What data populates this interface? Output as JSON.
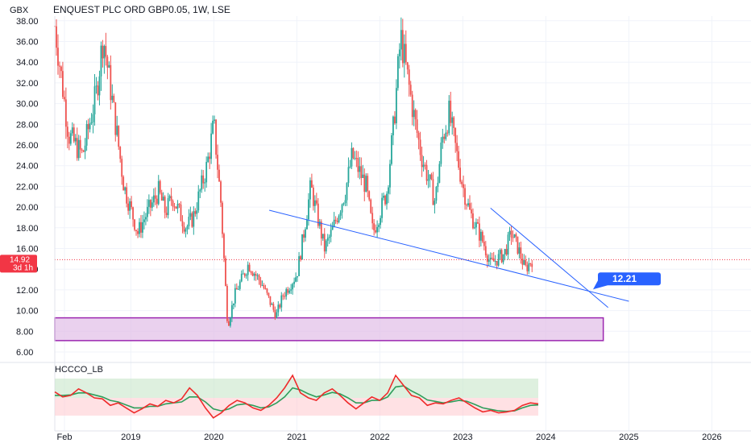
{
  "chart_data": {
    "type": "candlestick",
    "currency": "GBX",
    "title": "ENQUEST PLC ORD GBP0.05, 1W, LSE",
    "ylim": [
      6,
      40
    ],
    "y_ticks": [
      "38.00",
      "36.00",
      "34.00",
      "32.00",
      "30.00",
      "28.00",
      "26.00",
      "24.00",
      "22.00",
      "20.00",
      "18.00",
      "16.00",
      "14.00",
      "12.00",
      "10.00",
      "8.00",
      "6.00"
    ],
    "x_ticks": [
      "Feb",
      "2019",
      "2020",
      "2021",
      "2022",
      "2023",
      "2024",
      "2025",
      "2026"
    ],
    "current_price": {
      "value": 14.92,
      "label": "14.92",
      "countdown": "3d 1h"
    },
    "colors": {
      "up": "#26a69a",
      "down": "#ef5350",
      "trendline": "#2962ff",
      "zone_fill": "#e1bee7",
      "zone_border": "#9c27b0",
      "callout": "#2962ff",
      "price_tag": "#f23645"
    },
    "price_series": [
      [
        "2018-02",
        37.5
      ],
      [
        "2018-04",
        27.0
      ],
      [
        "2018-06",
        25.0
      ],
      [
        "2018-08",
        31.0
      ],
      [
        "2018-09",
        36.5
      ],
      [
        "2018-11",
        27.0
      ],
      [
        "2018-12",
        22.0
      ],
      [
        "2019-02",
        17.5
      ],
      [
        "2019-03",
        19.0
      ],
      [
        "2019-05",
        21.5
      ],
      [
        "2019-06",
        19.5
      ],
      [
        "2019-07",
        21.0
      ],
      [
        "2019-09",
        18.0
      ],
      [
        "2019-10",
        19.0
      ],
      [
        "2019-12",
        24.0
      ],
      [
        "2020-01",
        28.0
      ],
      [
        "2020-02",
        20.5
      ],
      [
        "2020-03",
        8.5
      ],
      [
        "2020-04",
        11.5
      ],
      [
        "2020-06",
        14.5
      ],
      [
        "2020-08",
        12.5
      ],
      [
        "2020-10",
        9.5
      ],
      [
        "2020-11",
        11.5
      ],
      [
        "2021-01",
        13.5
      ],
      [
        "2021-02",
        17.5
      ],
      [
        "2021-03",
        22.0
      ],
      [
        "2021-05",
        16.0
      ],
      [
        "2021-06",
        17.5
      ],
      [
        "2021-08",
        21.5
      ],
      [
        "2021-09",
        25.0
      ],
      [
        "2021-11",
        22.0
      ],
      [
        "2021-12",
        17.5
      ],
      [
        "2022-02",
        21.5
      ],
      [
        "2022-03",
        28.0
      ],
      [
        "2022-04",
        36.5
      ],
      [
        "2022-06",
        28.5
      ],
      [
        "2022-07",
        25.0
      ],
      [
        "2022-09",
        20.5
      ],
      [
        "2022-10",
        26.5
      ],
      [
        "2022-11",
        29.0
      ],
      [
        "2023-01",
        22.0
      ],
      [
        "2023-02",
        19.5
      ],
      [
        "2023-04",
        16.5
      ],
      [
        "2023-05",
        14.5
      ],
      [
        "2023-07",
        15.5
      ],
      [
        "2023-08",
        17.5
      ],
      [
        "2023-09",
        16.0
      ],
      [
        "2023-10",
        14.0
      ],
      [
        "2023-11",
        14.92
      ]
    ],
    "trendlines": [
      {
        "name": "lower-support",
        "points": [
          [
            "2020-09",
            19.7
          ],
          [
            "2025-01",
            10.9
          ]
        ]
      },
      {
        "name": "upper-resistance",
        "points": [
          [
            "2023-05",
            19.9
          ],
          [
            "2024-10",
            10.3
          ]
        ]
      }
    ],
    "zone": {
      "y_range": [
        7.1,
        9.3
      ],
      "x_range": [
        "2018-02",
        "2024-10"
      ]
    },
    "callout": {
      "label": "12.21",
      "value": 12.21
    },
    "indicator": {
      "name": "HCCCO_LB",
      "series_red": [
        0.62,
        0.52,
        0.55,
        0.68,
        0.6,
        0.5,
        0.48,
        0.35,
        0.4,
        0.3,
        0.2,
        0.28,
        0.38,
        0.33,
        0.45,
        0.4,
        0.48,
        0.7,
        0.55,
        0.3,
        0.1,
        0.2,
        0.35,
        0.45,
        0.4,
        0.3,
        0.25,
        0.35,
        0.5,
        0.7,
        0.95,
        0.6,
        0.5,
        0.45,
        0.6,
        0.68,
        0.55,
        0.4,
        0.28,
        0.4,
        0.52,
        0.45,
        0.6,
        0.95,
        0.75,
        0.55,
        0.5,
        0.35,
        0.4,
        0.38,
        0.45,
        0.5,
        0.4,
        0.3,
        0.22,
        0.25,
        0.2,
        0.22,
        0.25,
        0.35,
        0.4,
        0.38
      ],
      "series_green": [
        0.55,
        0.55,
        0.56,
        0.6,
        0.6,
        0.56,
        0.52,
        0.45,
        0.42,
        0.36,
        0.3,
        0.3,
        0.33,
        0.33,
        0.38,
        0.4,
        0.42,
        0.52,
        0.52,
        0.42,
        0.28,
        0.24,
        0.28,
        0.36,
        0.38,
        0.35,
        0.3,
        0.32,
        0.4,
        0.52,
        0.7,
        0.66,
        0.58,
        0.52,
        0.56,
        0.61,
        0.58,
        0.5,
        0.4,
        0.4,
        0.45,
        0.45,
        0.52,
        0.72,
        0.74,
        0.64,
        0.56,
        0.46,
        0.43,
        0.4,
        0.42,
        0.45,
        0.43,
        0.37,
        0.3,
        0.27,
        0.24,
        0.23,
        0.24,
        0.3,
        0.35,
        0.36
      ]
    }
  }
}
